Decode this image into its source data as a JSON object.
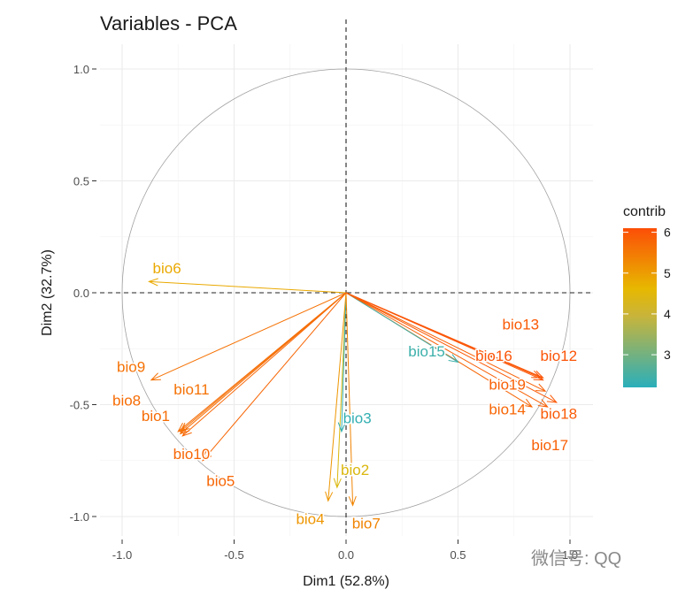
{
  "chart_data": {
    "type": "scatter",
    "subtype": "pca-variable-correlation-circle",
    "title": "Variables - PCA",
    "xlabel": "Dim1 (52.8%)",
    "ylabel": "Dim2 (32.7%)",
    "xlim": [
      -1.0,
      1.0
    ],
    "ylim": [
      -1.0,
      1.0
    ],
    "x_ticks": [
      "-1.0",
      "-0.5",
      "0.0",
      "0.5",
      "1.0"
    ],
    "y_ticks": [
      "1.0",
      "0.5",
      "0.0",
      "-0.5",
      "-1.0"
    ],
    "grid": true,
    "unit_circle": true,
    "reference_lines": {
      "x": 0,
      "y": 0,
      "style": "dashed"
    },
    "legend": {
      "title": "contrib",
      "position": "right",
      "type": "colorbar",
      "ticks": [
        "6",
        "5",
        "4",
        "3"
      ],
      "range": [
        2.2,
        6.1
      ],
      "colors": [
        "#00AFBB",
        "#E7B800",
        "#FC4E07"
      ]
    },
    "variables": [
      {
        "name": "bio1",
        "x": -0.75,
        "y": -0.62,
        "contrib": 5.6,
        "label_x": -0.85,
        "label_y": -0.55
      },
      {
        "name": "bio2",
        "x": -0.04,
        "y": -0.87,
        "contrib": 4.2,
        "label_x": 0.04,
        "label_y": -0.79
      },
      {
        "name": "bio3",
        "x": -0.02,
        "y": -0.62,
        "contrib": 2.3,
        "label_x": 0.05,
        "label_y": -0.56
      },
      {
        "name": "bio4",
        "x": -0.08,
        "y": -0.93,
        "contrib": 4.9,
        "label_x": -0.16,
        "label_y": -1.01
      },
      {
        "name": "bio5",
        "x": -0.64,
        "y": -0.75,
        "contrib": 5.7,
        "label_x": -0.56,
        "label_y": -0.84
      },
      {
        "name": "bio6",
        "x": -0.88,
        "y": 0.05,
        "contrib": 4.6,
        "label_x": -0.8,
        "label_y": 0.11
      },
      {
        "name": "bio7",
        "x": 0.03,
        "y": -0.95,
        "contrib": 5.2,
        "label_x": 0.09,
        "label_y": -1.03
      },
      {
        "name": "bio8",
        "x": -0.74,
        "y": -0.63,
        "contrib": 5.6,
        "label_x": -0.98,
        "label_y": -0.48
      },
      {
        "name": "bio9",
        "x": -0.87,
        "y": -0.39,
        "contrib": 5.5,
        "label_x": -0.96,
        "label_y": -0.33
      },
      {
        "name": "bio10",
        "x": -0.73,
        "y": -0.64,
        "contrib": 5.7,
        "label_x": -0.69,
        "label_y": -0.72
      },
      {
        "name": "bio11",
        "x": -0.74,
        "y": -0.62,
        "contrib": 5.5,
        "label_x": -0.69,
        "label_y": -0.43
      },
      {
        "name": "bio12",
        "x": 0.88,
        "y": -0.38,
        "contrib": 6.0,
        "label_x": 0.95,
        "label_y": -0.28
      },
      {
        "name": "bio13",
        "x": 0.87,
        "y": -0.38,
        "contrib": 5.9,
        "label_x": 0.78,
        "label_y": -0.14
      },
      {
        "name": "bio14",
        "x": 0.83,
        "y": -0.51,
        "contrib": 5.7,
        "label_x": 0.72,
        "label_y": -0.52
      },
      {
        "name": "bio15",
        "x": 0.5,
        "y": -0.31,
        "contrib": 2.4,
        "label_x": 0.36,
        "label_y": -0.26
      },
      {
        "name": "bio16",
        "x": 0.88,
        "y": -0.39,
        "contrib": 6.0,
        "label_x": 0.66,
        "label_y": -0.28
      },
      {
        "name": "bio17",
        "x": 0.9,
        "y": -0.51,
        "contrib": 5.8,
        "label_x": 0.91,
        "label_y": -0.68
      },
      {
        "name": "bio18",
        "x": 0.94,
        "y": -0.49,
        "contrib": 5.9,
        "label_x": 0.95,
        "label_y": -0.54
      },
      {
        "name": "bio19",
        "x": 0.89,
        "y": -0.44,
        "contrib": 5.8,
        "label_x": 0.72,
        "label_y": -0.41
      }
    ]
  },
  "watermark": "微信号: QQ"
}
